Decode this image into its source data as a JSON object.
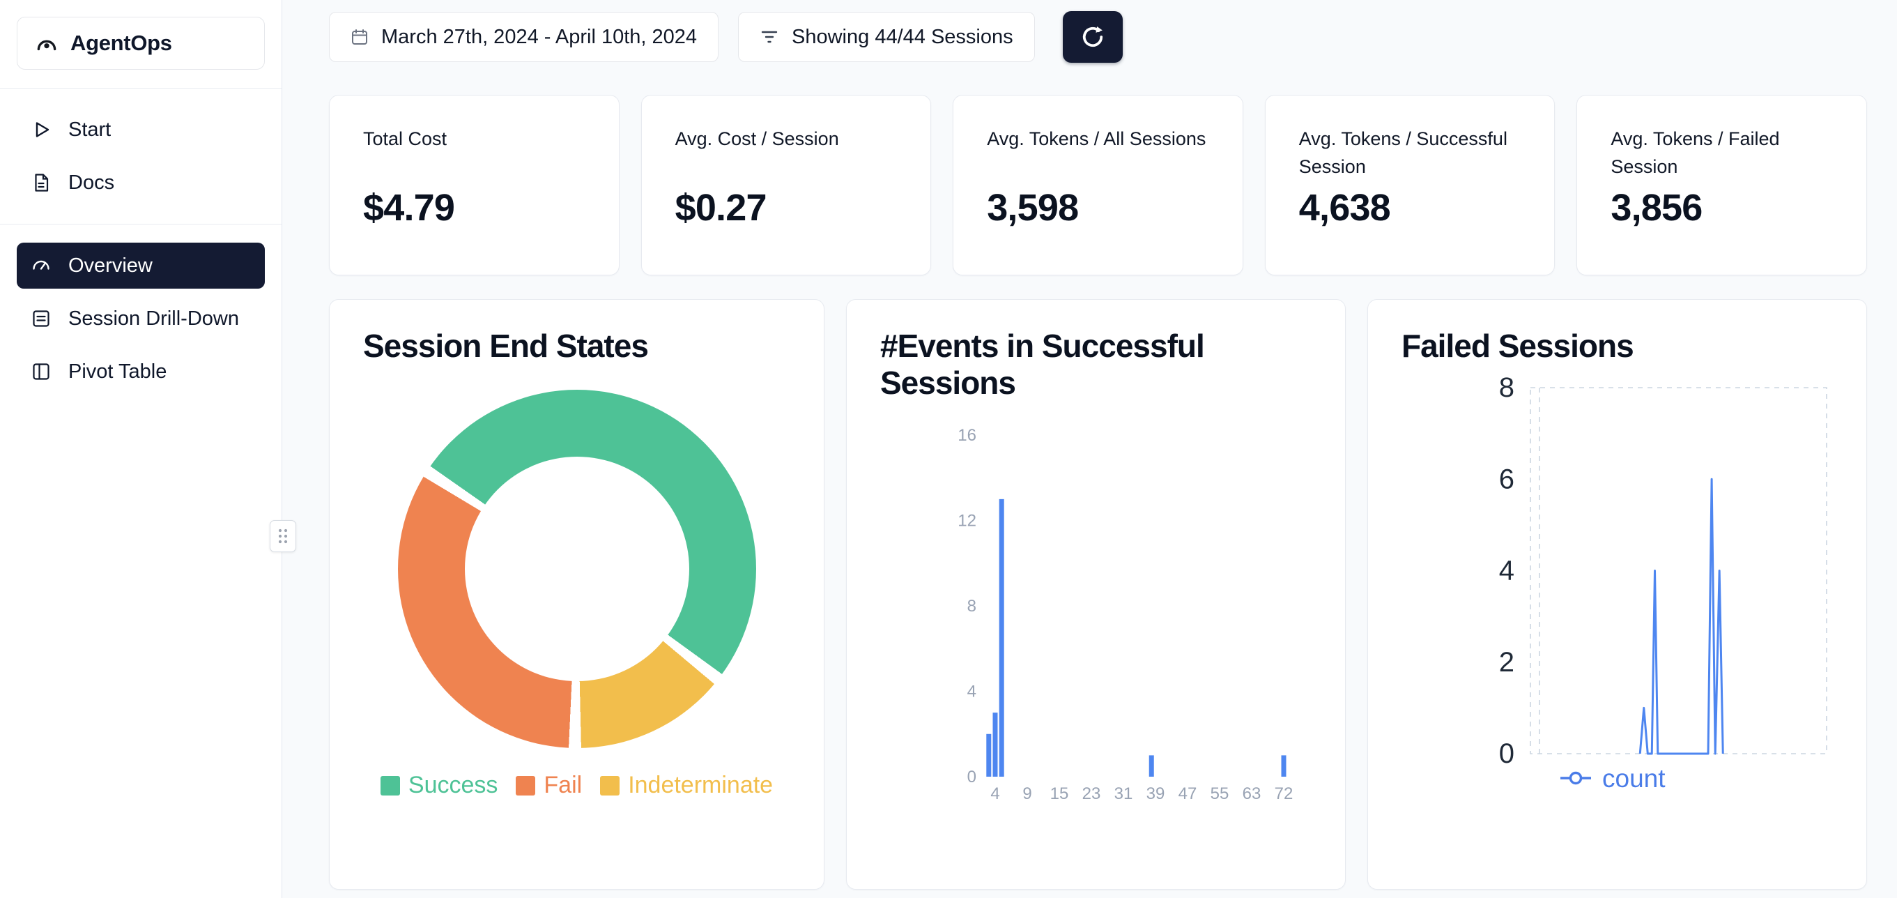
{
  "app": {
    "name": "AgentOps"
  },
  "colors": {
    "accent_dark": "#141B33",
    "background": "#F8FAFC",
    "card_border": "#E7EAF0",
    "success_green": "#4EC296",
    "fail_orange": "#EF8350",
    "indeterminate_yellow": "#F2BE4C",
    "chart_blue": "#4E86F0"
  },
  "sidebar": {
    "logo_label": "AgentOps",
    "logo_icon": "agentops-logo-icon",
    "items": [
      {
        "label": "Start",
        "icon": "play-icon",
        "active": false
      },
      {
        "label": "Docs",
        "icon": "docs-icon",
        "active": false
      },
      {
        "label": "Overview",
        "icon": "gauge-icon",
        "active": true
      },
      {
        "label": "Session Drill-Down",
        "icon": "drilldown-list-icon",
        "active": false
      },
      {
        "label": "Pivot Table",
        "icon": "pivot-table-icon",
        "active": false
      }
    ]
  },
  "topbar": {
    "date_range": "March 27th, 2024 - April 10th, 2024",
    "date_icon": "calendar-icon",
    "sessions_filter": "Showing 44/44 Sessions",
    "filter_icon": "filter-icon",
    "refresh_icon": "refresh-icon"
  },
  "stats": [
    {
      "label": "Total Cost",
      "value": "$4.79"
    },
    {
      "label": "Avg. Cost / Session",
      "value": "$0.27"
    },
    {
      "label": "Avg. Tokens / All Sessions",
      "value": "3,598"
    },
    {
      "label": "Avg. Tokens / Successful Session",
      "value": "4,638"
    },
    {
      "label": "Avg. Tokens / Failed Session",
      "value": "3,856"
    }
  ],
  "chart_data": [
    {
      "type": "pie",
      "title": "Session End States",
      "donut": true,
      "start_angle_deg": 305,
      "gap_deg": 4,
      "slices": [
        {
          "label": "Success",
          "pct": 52,
          "color": "#4EC296"
        },
        {
          "label": "Indeterminate",
          "pct": 14,
          "color": "#F2BE4C"
        },
        {
          "label": "Fail",
          "pct": 34,
          "color": "#EF8350"
        }
      ],
      "legend_order": [
        "Success",
        "Fail",
        "Indeterminate"
      ],
      "legend_position": "bottom"
    },
    {
      "type": "bar",
      "title": "#Events in Successful Sessions",
      "x_ticks": [
        4,
        9,
        15,
        23,
        31,
        39,
        47,
        55,
        63,
        72
      ],
      "y_ticks": [
        0,
        4,
        8,
        12,
        16
      ],
      "ylim": [
        0,
        16
      ],
      "bars": [
        {
          "x": 3,
          "count": 2
        },
        {
          "x": 4,
          "count": 3
        },
        {
          "x": 5,
          "count": 13
        },
        {
          "x": 38,
          "count": 1
        },
        {
          "x": 72,
          "count": 1
        }
      ],
      "bar_color": "#4E86F0",
      "axis_label_color": "#98a2b3",
      "grid": false
    },
    {
      "type": "line",
      "title": "Failed Sessions",
      "y_ticks": [
        0,
        2,
        4,
        6,
        8
      ],
      "ylim": [
        0,
        8
      ],
      "grid": "dashed",
      "axis_label_color": "#1f2937",
      "series": [
        {
          "name": "count",
          "color": "#4E86F0",
          "points": [
            [
              0.37,
              0
            ],
            [
              0.383,
              1
            ],
            [
              0.396,
              0
            ],
            [
              0.41,
              0
            ],
            [
              0.42,
              4
            ],
            [
              0.43,
              0
            ],
            [
              0.6,
              0
            ],
            [
              0.612,
              6
            ],
            [
              0.624,
              0
            ],
            [
              0.638,
              4
            ],
            [
              0.65,
              0
            ]
          ]
        }
      ],
      "legend": [
        {
          "label": "count",
          "color": "#4a7ce8"
        }
      ]
    }
  ]
}
